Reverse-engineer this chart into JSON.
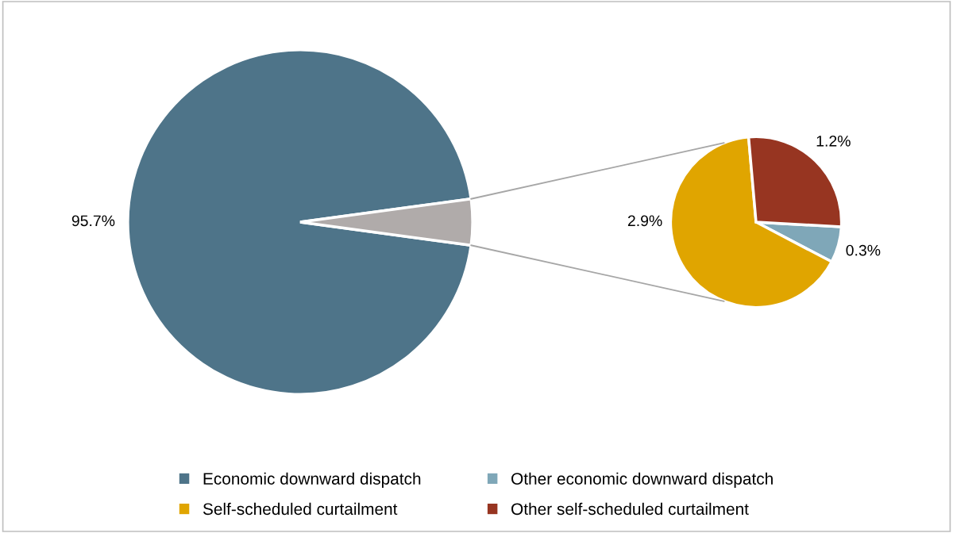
{
  "chart_data": [
    {
      "type": "pie",
      "categories": [
        "Economic downward dispatch",
        null
      ],
      "values": [
        95.7,
        4.3
      ],
      "colors": [
        "#4e7489",
        "#b0abaa"
      ],
      "value_labels": [
        "95.7%",
        null
      ],
      "legend": "bottom"
    },
    {
      "type": "pie",
      "categories": [
        "Other economic downward dispatch",
        "Self-scheduled curtailment",
        "Other self-scheduled curtailment"
      ],
      "values": [
        0.3,
        2.9,
        1.2
      ],
      "colors": [
        "#7fa7b8",
        "#e0a500",
        "#973521"
      ],
      "value_labels": [
        "0.3%",
        "2.9%",
        "1.2%"
      ],
      "legend": "bottom"
    }
  ]
}
